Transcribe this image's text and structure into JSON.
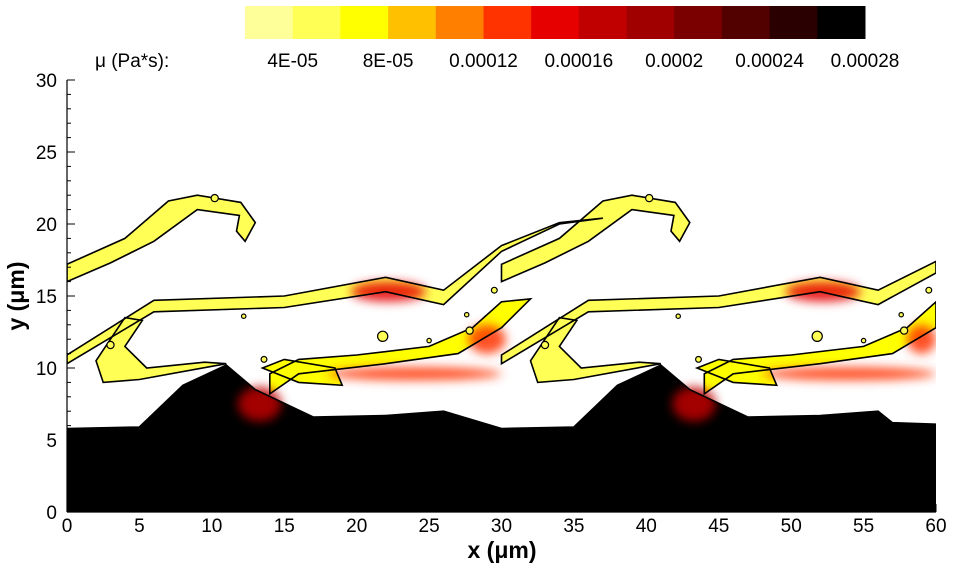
{
  "chart_data": {
    "type": "heatmap",
    "title": "",
    "xlabel_main": "x (",
    "xlabel_unit": "μm",
    "xlabel_close": ")",
    "ylabel_main": "y (",
    "ylabel_unit": "μm",
    "ylabel_close": ")",
    "xlim": [
      0,
      60
    ],
    "ylim": [
      0,
      30
    ],
    "x_ticks": [
      "0",
      "5",
      "10",
      "15",
      "20",
      "25",
      "30",
      "35",
      "40",
      "45",
      "50",
      "55",
      "60"
    ],
    "y_ticks": [
      "0",
      "5",
      "10",
      "15",
      "20",
      "25",
      "30"
    ],
    "colorbar": {
      "label": "μ (Pa*s):",
      "tick_labels": [
        "4E-05",
        "8E-05",
        "0.00012",
        "0.00016",
        "0.0002",
        "0.00024",
        "0.00028"
      ],
      "levels": [
        2e-05,
        4e-05,
        6e-05,
        8e-05,
        0.0001,
        0.00012,
        0.00014,
        0.00016,
        0.00018,
        0.0002,
        0.00022,
        0.00024,
        0.00026
      ],
      "colors": [
        "#ffff99",
        "#ffff55",
        "#ffff00",
        "#ffc000",
        "#ff8000",
        "#ff3300",
        "#e60000",
        "#c00000",
        "#a00000",
        "#7a0000",
        "#520000",
        "#2a0000",
        "#000000"
      ]
    },
    "regions": [
      {
        "name": "dense-fluid",
        "color": "#000000",
        "outline": [
          [
            0,
            5.8
          ],
          [
            5,
            5.9
          ],
          [
            8,
            8.8
          ],
          [
            11,
            10.2
          ],
          [
            13,
            8.5
          ],
          [
            17,
            6.6
          ],
          [
            22,
            6.7
          ],
          [
            26,
            7.0
          ],
          [
            30,
            5.8
          ],
          [
            35,
            5.9
          ],
          [
            38,
            8.8
          ],
          [
            41,
            10.2
          ],
          [
            43,
            8.5
          ],
          [
            47,
            6.6
          ],
          [
            52,
            6.7
          ],
          [
            56,
            7.0
          ],
          [
            57,
            6.2
          ],
          [
            60,
            6.1
          ],
          [
            60,
            0
          ],
          [
            0,
            0
          ]
        ]
      },
      {
        "name": "mixing-band-lower",
        "color": "#ffff00",
        "outline": [
          [
            14,
            8.2
          ],
          [
            16,
            9.6
          ],
          [
            22,
            10.3
          ],
          [
            27,
            11.0
          ],
          [
            30,
            12.8
          ],
          [
            32,
            14.8
          ],
          [
            30,
            14.6
          ],
          [
            28,
            12.8
          ],
          [
            25,
            11.5
          ],
          [
            20,
            10.9
          ],
          [
            16,
            10.6
          ],
          [
            14,
            9.6
          ]
        ]
      },
      {
        "name": "mixing-band-lower-2",
        "color": "#ffff00",
        "outline": [
          [
            44,
            8.2
          ],
          [
            46,
            9.6
          ],
          [
            52,
            10.3
          ],
          [
            57,
            11.0
          ],
          [
            60,
            12.8
          ],
          [
            60,
            14.6
          ],
          [
            58,
            12.8
          ],
          [
            55,
            11.5
          ],
          [
            50,
            10.9
          ],
          [
            46,
            10.6
          ],
          [
            44,
            9.6
          ]
        ]
      },
      {
        "name": "mixing-band-upper",
        "color": "#ffff55",
        "outline": [
          [
            0,
            10.9
          ],
          [
            6,
            14.7
          ],
          [
            15,
            15.0
          ],
          [
            22,
            16.3
          ],
          [
            26,
            15.4
          ],
          [
            30,
            18.5
          ],
          [
            34,
            20.1
          ],
          [
            37,
            20.4
          ],
          [
            34,
            20.0
          ],
          [
            30,
            18.1
          ],
          [
            26,
            14.4
          ],
          [
            22,
            15.3
          ],
          [
            15,
            14.2
          ],
          [
            6,
            13.9
          ],
          [
            0,
            10.3
          ]
        ]
      },
      {
        "name": "mixing-band-upper-2",
        "color": "#ffff55",
        "outline": [
          [
            30,
            10.9
          ],
          [
            36,
            14.7
          ],
          [
            45,
            15.0
          ],
          [
            52,
            16.3
          ],
          [
            56,
            15.4
          ],
          [
            60,
            17.4
          ],
          [
            60,
            16.6
          ],
          [
            56,
            14.4
          ],
          [
            52,
            15.3
          ],
          [
            45,
            14.2
          ],
          [
            36,
            13.9
          ],
          [
            30,
            10.3
          ]
        ]
      },
      {
        "name": "upper-finger",
        "color": "#ffff55",
        "outline": [
          [
            0,
            17.2
          ],
          [
            4,
            19.0
          ],
          [
            7,
            21.6
          ],
          [
            9,
            22.0
          ],
          [
            12,
            21.5
          ],
          [
            13,
            20.1
          ],
          [
            12.3,
            18.8
          ],
          [
            11.7,
            19.5
          ],
          [
            11.9,
            20.6
          ],
          [
            9,
            21.0
          ],
          [
            6,
            18.8
          ],
          [
            3,
            17.3
          ],
          [
            0,
            16.0
          ]
        ]
      },
      {
        "name": "upper-finger-2",
        "color": "#ffff55",
        "outline": [
          [
            30,
            17.2
          ],
          [
            34,
            19.0
          ],
          [
            37,
            21.6
          ],
          [
            39,
            22.0
          ],
          [
            42,
            21.5
          ],
          [
            43,
            20.1
          ],
          [
            42.3,
            18.8
          ],
          [
            41.7,
            19.5
          ],
          [
            41.9,
            20.6
          ],
          [
            39,
            21.0
          ],
          [
            36,
            18.8
          ],
          [
            33,
            17.3
          ],
          [
            30,
            16.0
          ]
        ]
      },
      {
        "name": "left-hook",
        "color": "#ffff55",
        "outline": [
          [
            2,
            10.5
          ],
          [
            4,
            13.5
          ],
          [
            5.2,
            13.3
          ],
          [
            4.0,
            11.5
          ],
          [
            5.5,
            10.0
          ],
          [
            9.5,
            10.4
          ],
          [
            11,
            10.3
          ],
          [
            5,
            9.2
          ],
          [
            2.5,
            9.0
          ]
        ]
      },
      {
        "name": "left-hook-2",
        "color": "#ffff55",
        "outline": [
          [
            32,
            10.5
          ],
          [
            34,
            13.5
          ],
          [
            35.2,
            13.3
          ],
          [
            34.0,
            11.5
          ],
          [
            35.5,
            10.0
          ],
          [
            39.5,
            10.4
          ],
          [
            41,
            10.3
          ],
          [
            35,
            9.2
          ],
          [
            32.5,
            9.0
          ]
        ]
      },
      {
        "name": "lower-tongue",
        "color": "#ffff00",
        "outline": [
          [
            13.5,
            10.0
          ],
          [
            16,
            9.0
          ],
          [
            19,
            8.8
          ],
          [
            18.5,
            10.0
          ],
          [
            15,
            10.6
          ]
        ]
      },
      {
        "name": "lower-tongue-2",
        "color": "#ffff00",
        "outline": [
          [
            43.5,
            10.0
          ],
          [
            46,
            9.0
          ],
          [
            49,
            8.8
          ],
          [
            48.5,
            10.0
          ],
          [
            45,
            10.6
          ]
        ]
      }
    ],
    "hotspots": [
      {
        "name": "upper-red-spot",
        "x": 22.2,
        "y": 15.3,
        "rx": 2.6,
        "ry": 0.7,
        "color": "#e60000"
      },
      {
        "name": "upper-red-spot-2",
        "x": 52.2,
        "y": 15.3,
        "rx": 2.6,
        "ry": 0.7,
        "color": "#e60000"
      },
      {
        "name": "lower-red-band",
        "x": 24,
        "y": 9.6,
        "rx": 6,
        "ry": 0.45,
        "color": "#ff3300"
      },
      {
        "name": "lower-red-band-2",
        "x": 54,
        "y": 9.6,
        "rx": 6,
        "ry": 0.45,
        "color": "#ff3300"
      },
      {
        "name": "left-red-fringe",
        "x": 13.3,
        "y": 7.5,
        "rx": 1.5,
        "ry": 1.2,
        "color": "#c00000"
      },
      {
        "name": "left-red-fringe-2",
        "x": 43.3,
        "y": 7.5,
        "rx": 1.5,
        "ry": 1.2,
        "color": "#c00000"
      },
      {
        "name": "mid-red-spot",
        "x": 29,
        "y": 12.0,
        "rx": 1.3,
        "ry": 1.0,
        "color": "#ff3300"
      },
      {
        "name": "mid-red-spot-2",
        "x": 59,
        "y": 12.0,
        "rx": 1.0,
        "ry": 1.0,
        "color": "#ff3300"
      }
    ],
    "droplets": [
      {
        "x": 10.2,
        "y": 21.8,
        "r": 0.25
      },
      {
        "x": 40.2,
        "y": 21.8,
        "r": 0.25
      },
      {
        "x": 3.0,
        "y": 11.6,
        "r": 0.25
      },
      {
        "x": 33.0,
        "y": 11.6,
        "r": 0.25
      },
      {
        "x": 12.2,
        "y": 13.6,
        "r": 0.15
      },
      {
        "x": 42.2,
        "y": 13.6,
        "r": 0.15
      },
      {
        "x": 21.8,
        "y": 12.2,
        "r": 0.35
      },
      {
        "x": 51.8,
        "y": 12.2,
        "r": 0.35
      },
      {
        "x": 25.0,
        "y": 11.9,
        "r": 0.15
      },
      {
        "x": 55.0,
        "y": 11.9,
        "r": 0.15
      },
      {
        "x": 27.6,
        "y": 13.7,
        "r": 0.15
      },
      {
        "x": 57.6,
        "y": 13.7,
        "r": 0.15
      },
      {
        "x": 29.5,
        "y": 15.4,
        "r": 0.2
      },
      {
        "x": 59.5,
        "y": 15.4,
        "r": 0.2
      },
      {
        "x": 13.6,
        "y": 10.6,
        "r": 0.2
      },
      {
        "x": 43.6,
        "y": 10.6,
        "r": 0.2
      },
      {
        "x": 27.8,
        "y": 12.6,
        "r": 0.25
      },
      {
        "x": 57.8,
        "y": 12.6,
        "r": 0.25
      }
    ]
  }
}
